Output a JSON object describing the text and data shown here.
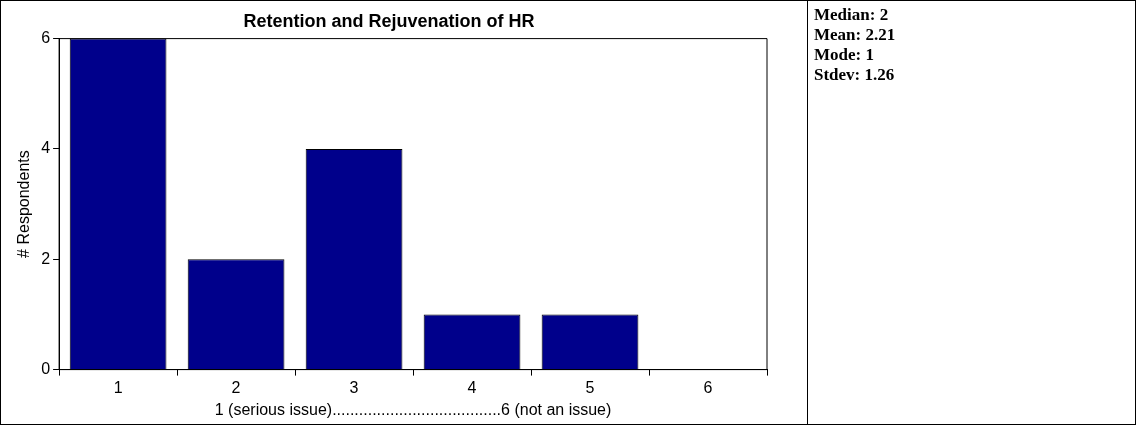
{
  "chart_data": {
    "type": "bar",
    "title": "Retention and Rejuvenation of HR",
    "categories": [
      "1",
      "2",
      "3",
      "4",
      "5",
      "6"
    ],
    "values": [
      6,
      2,
      4,
      1,
      1,
      0
    ],
    "color": "#00008b",
    "ylim": [
      0,
      6
    ],
    "yticks": [
      0,
      2,
      4,
      6
    ],
    "ylabel": "# Respondents",
    "xlabel": "1 (serious issue)......................................6 (not an issue)",
    "legend": false,
    "annotations": [
      "Median: 2",
      "Mean: 2.21",
      "Mode: 1",
      "Stdev: 1.26"
    ]
  }
}
